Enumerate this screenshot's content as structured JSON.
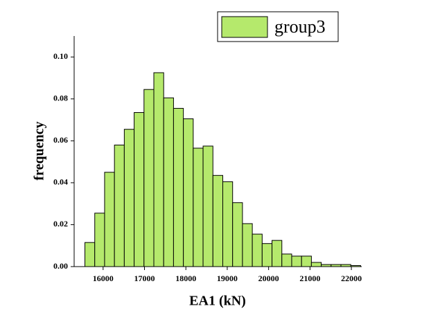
{
  "chart_data": {
    "type": "histogram",
    "x_label": "EA1 (kN)",
    "y_label": "frequency",
    "bins": [
      15560,
      15798,
      16036,
      16274,
      16512,
      16750,
      16988,
      17226,
      17464,
      17702,
      17940,
      18178,
      18416,
      18654,
      18892,
      19130,
      19368,
      19606,
      19844,
      20082,
      20320,
      20558,
      20796,
      21034,
      21272,
      21510,
      21748,
      21986,
      22224
    ],
    "series": [
      {
        "name": "group3",
        "color": "#b5e96c",
        "values": [
          0.0115,
          0.0255,
          0.045,
          0.058,
          0.0655,
          0.0735,
          0.0845,
          0.0925,
          0.0805,
          0.0755,
          0.0705,
          0.0565,
          0.0575,
          0.0435,
          0.0405,
          0.0305,
          0.0205,
          0.0155,
          0.011,
          0.0125,
          0.006,
          0.005,
          0.005,
          0.002,
          0.001,
          0.001,
          0.001,
          0.0005
        ]
      }
    ],
    "xlim": [
      15300,
      22250
    ],
    "ylim": [
      0,
      0.11
    ],
    "xticks": [
      16000,
      17000,
      18000,
      19000,
      20000,
      21000,
      22000
    ],
    "yticks": [
      {
        "value": 0,
        "label": "0.00"
      },
      {
        "value": 0.02,
        "label": "0.02"
      },
      {
        "value": 0.04,
        "label": "0.04"
      },
      {
        "value": 0.06,
        "label": "0.06"
      },
      {
        "value": 0.08,
        "label": "0.08"
      },
      {
        "value": 0.1,
        "label": "0.10"
      }
    ],
    "legend": "top-right"
  }
}
